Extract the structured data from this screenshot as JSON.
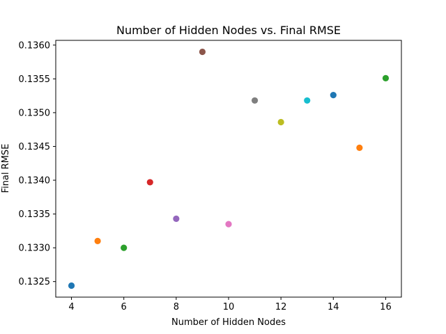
{
  "chart_data": {
    "type": "scatter",
    "title": "Number of Hidden Nodes vs. Final RMSE",
    "xlabel": "Number of Hidden Nodes",
    "ylabel": "Final RMSE",
    "xlim": [
      3.4,
      16.6
    ],
    "ylim": [
      0.13227,
      0.13607
    ],
    "grid": false,
    "legend": "none",
    "xticks": [
      4,
      6,
      8,
      10,
      12,
      14,
      16
    ],
    "xtick_labels": [
      "4",
      "6",
      "8",
      "10",
      "12",
      "14",
      "16"
    ],
    "yticks": [
      0.1325,
      0.133,
      0.1335,
      0.134,
      0.1345,
      0.135,
      0.1355,
      0.136
    ],
    "ytick_labels": [
      "0.1325",
      "0.1330",
      "0.1335",
      "0.1340",
      "0.1345",
      "0.1350",
      "0.1355",
      "0.1360"
    ],
    "points": [
      {
        "x": 4,
        "y": 0.13244,
        "color": "#1f77b4"
      },
      {
        "x": 5,
        "y": 0.1331,
        "color": "#ff7f0e"
      },
      {
        "x": 6,
        "y": 0.133,
        "color": "#2ca02c"
      },
      {
        "x": 7,
        "y": 0.13397,
        "color": "#d62728"
      },
      {
        "x": 8,
        "y": 0.13343,
        "color": "#9467bd"
      },
      {
        "x": 9,
        "y": 0.1359,
        "color": "#8c564b"
      },
      {
        "x": 10,
        "y": 0.13335,
        "color": "#e377c2"
      },
      {
        "x": 11,
        "y": 0.13518,
        "color": "#7f7f7f"
      },
      {
        "x": 12,
        "y": 0.13486,
        "color": "#bcbd22"
      },
      {
        "x": 13,
        "y": 0.13518,
        "color": "#17becf"
      },
      {
        "x": 14,
        "y": 0.13526,
        "color": "#1f77b4"
      },
      {
        "x": 15,
        "y": 0.13448,
        "color": "#ff7f0e"
      },
      {
        "x": 16,
        "y": 0.13551,
        "color": "#2ca02c"
      }
    ]
  }
}
